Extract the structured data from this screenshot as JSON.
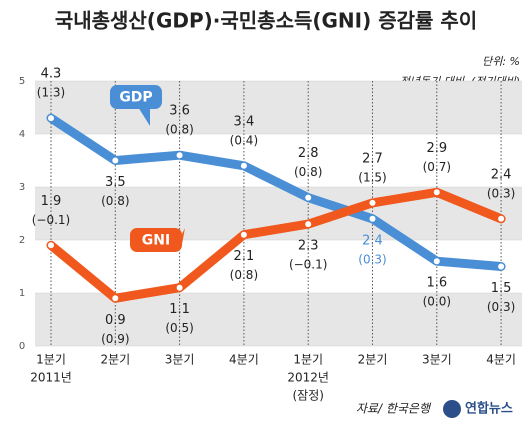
{
  "chart_data": {
    "type": "line",
    "title": "국내총생산(GDP)·국민총소득(GNI) 증감률 추이",
    "unit": "단위: %",
    "note": "전년동기 대비, (전기대비)",
    "source": "자료/ 한국은행",
    "logo": "연합뉴스",
    "categories": [
      "1분기",
      "2분기",
      "3분기",
      "4분기",
      "1분기",
      "2분기",
      "3분기",
      "4분기"
    ],
    "period_notes": [
      {
        "category_index": 0,
        "lines": [
          "2011년"
        ]
      },
      {
        "category_index": 4,
        "lines": [
          "2012년",
          "(잠정)"
        ]
      }
    ],
    "ylim": [
      0,
      5
    ],
    "yticks": [
      0,
      1,
      2,
      3,
      4,
      5
    ],
    "grid": true,
    "series": [
      {
        "name": "GDP",
        "color": "#4a8fd6",
        "values": [
          4.3,
          3.5,
          3.6,
          3.4,
          2.8,
          2.4,
          1.6,
          1.5
        ],
        "qoq": {
          "values": [
            1.3,
            0.8,
            0.8,
            0.4,
            0.8,
            0.3,
            0.0,
            0.3
          ],
          "value_labels": [
            "(1.3)",
            "(0.8)",
            "(0.8)",
            "(0.4)",
            "(0.8)",
            "(0.3)",
            "(0.0)",
            "(0.3)"
          ]
        }
      },
      {
        "name": "GNI",
        "color": "#f0581e",
        "values": [
          1.9,
          0.9,
          1.1,
          2.1,
          2.3,
          2.7,
          2.9,
          2.4
        ],
        "qoq": {
          "values": [
            -0.1,
            0.9,
            0.5,
            0.8,
            -0.1,
            1.5,
            0.7,
            0.3
          ],
          "value_labels": [
            "(−0.1)",
            "(0.9)",
            "(0.5)",
            "(0.8)",
            "(−0.1)",
            "(1.5)",
            "(0.7)",
            "(0.3)"
          ]
        }
      }
    ]
  }
}
